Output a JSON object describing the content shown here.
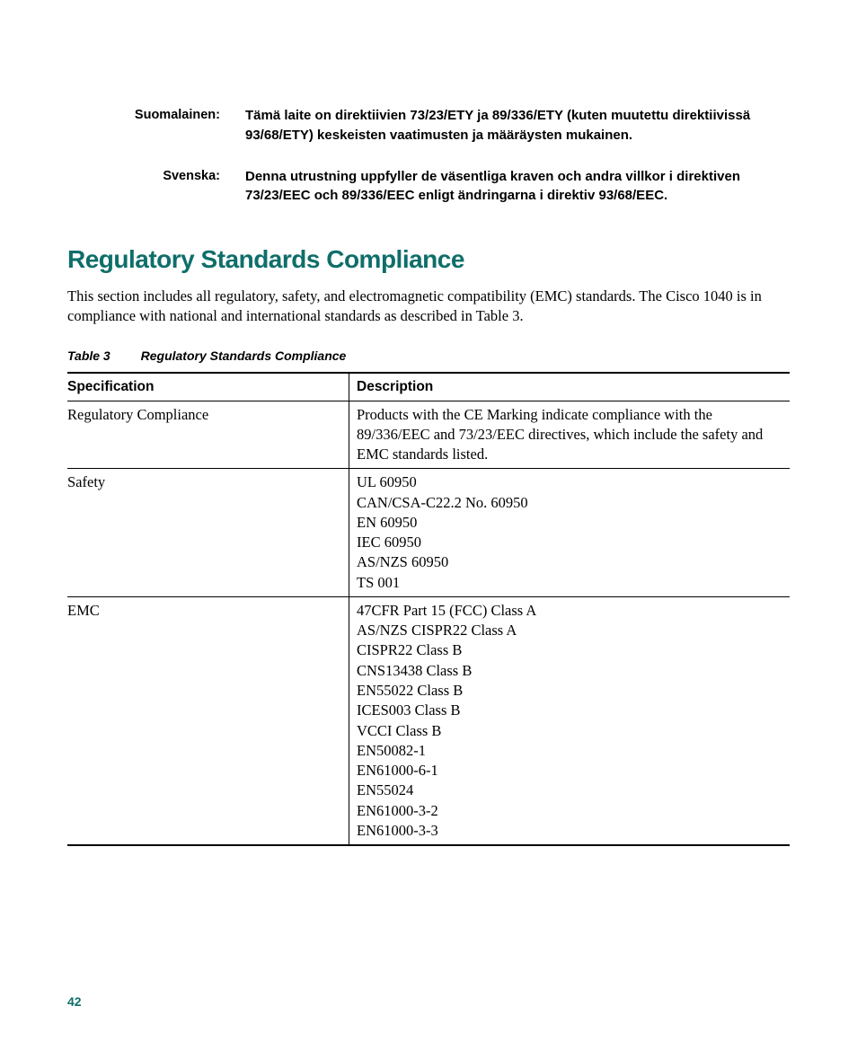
{
  "colors": {
    "heading": "#0f6e6a",
    "text": "#000000",
    "background": "#ffffff",
    "rule": "#000000"
  },
  "languages": [
    {
      "label": "Suomalainen:",
      "text": "Tämä laite on direktiivien 73/23/ETY ja 89/336/ETY (kuten muutettu direktiivissä 93/68/ETY) keskeisten vaatimusten ja määräysten mukainen."
    },
    {
      "label": "Svenska:",
      "text": "Denna utrustning uppfyller de väsentliga kraven och andra villkor i direktiven 73/23/EEC och 89/336/EEC enligt ändringarna i direktiv 93/68/EEC."
    }
  ],
  "section": {
    "heading": "Regulatory Standards Compliance",
    "body": "This section includes all regulatory, safety, and electromagnetic compatibility (EMC) standards. The Cisco 1040 is in compliance with national and international standards as described in Table 3."
  },
  "table": {
    "caption_num": "Table 3",
    "caption_title": "Regulatory Standards Compliance",
    "columns": [
      "Specification",
      "Description"
    ],
    "rows": [
      {
        "spec": "Regulatory Compliance",
        "desc": "Products with the CE Marking indicate compliance with the 89/336/EEC and 73/23/EEC directives, which include the safety and EMC standards listed."
      },
      {
        "spec": "Safety",
        "desc": "UL 60950\nCAN/CSA-C22.2 No. 60950\nEN 60950\nIEC 60950\nAS/NZS 60950\nTS 001"
      },
      {
        "spec": "EMC",
        "desc": "47CFR Part 15 (FCC) Class A\nAS/NZS CISPR22 Class A\nCISPR22 Class B\nCNS13438 Class B\nEN55022 Class B\nICES003 Class B\nVCCI Class B\nEN50082-1\nEN61000-6-1\nEN55024\nEN61000-3-2\nEN61000-3-3"
      }
    ]
  },
  "page_number": "42"
}
